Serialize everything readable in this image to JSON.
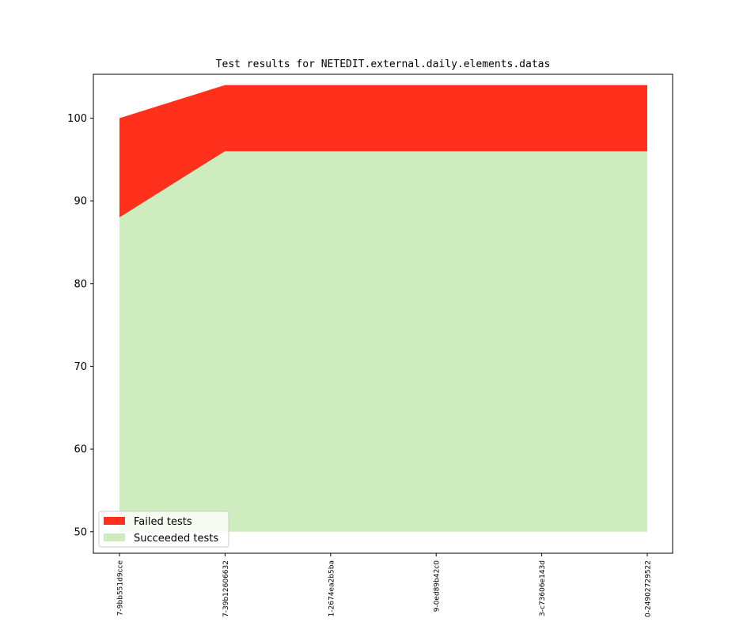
{
  "chart_data": {
    "type": "area",
    "title": "Test results for NETEDIT.external.daily.elements.datas",
    "xlabel": "",
    "ylabel": "",
    "categories": [
      "7-9bb551d9cce",
      "7-39b12606632",
      "1-2674ea2b5ba",
      "9-0ed89b42c0",
      "3-c73606e143d",
      "0-24902729522"
    ],
    "ylim": [
      47.4,
      105.3
    ],
    "yticks": [
      50,
      60,
      70,
      80,
      90,
      100
    ],
    "baseline": 50,
    "grid": false,
    "legend_position": "lower-left",
    "series": [
      {
        "name": "Succeeded tests",
        "values": [
          88,
          96,
          96,
          96,
          96,
          96
        ],
        "color": "#cfecbf"
      },
      {
        "name": "Failed tests",
        "values": [
          12,
          8,
          8,
          8,
          8,
          8
        ],
        "color": "#ff311c"
      }
    ]
  }
}
